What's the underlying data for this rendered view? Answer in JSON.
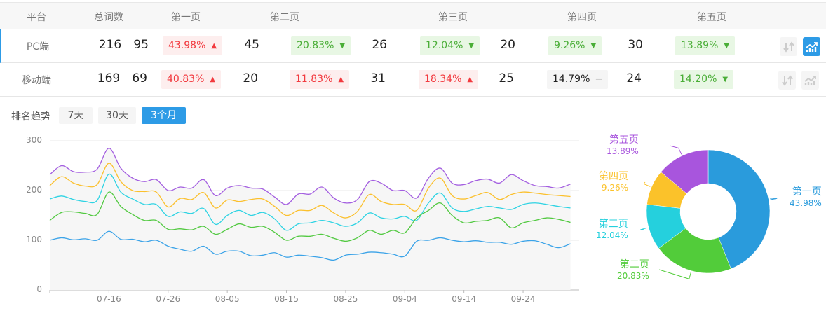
{
  "table": {
    "headers": [
      "平台",
      "总词数",
      "第一页",
      "第二页",
      "第三页",
      "第四页",
      "第五页"
    ],
    "rows": [
      {
        "platform": "PC端",
        "total": "216",
        "active": true,
        "chart_on": true,
        "pages": [
          {
            "count": "95",
            "pct": "43.98%",
            "trend": "up"
          },
          {
            "count": "45",
            "pct": "20.83%",
            "trend": "down"
          },
          {
            "count": "26",
            "pct": "12.04%",
            "trend": "down"
          },
          {
            "count": "20",
            "pct": "9.26%",
            "trend": "down"
          },
          {
            "count": "30",
            "pct": "13.89%",
            "trend": "down"
          }
        ]
      },
      {
        "platform": "移动端",
        "total": "169",
        "active": false,
        "chart_on": false,
        "pages": [
          {
            "count": "69",
            "pct": "40.83%",
            "trend": "up"
          },
          {
            "count": "20",
            "pct": "11.83%",
            "trend": "up"
          },
          {
            "count": "31",
            "pct": "18.34%",
            "trend": "up"
          },
          {
            "count": "25",
            "pct": "14.79%",
            "trend": "flat"
          },
          {
            "count": "24",
            "pct": "14.20%",
            "trend": "down"
          }
        ]
      }
    ],
    "icons": {
      "sort": "sort-arrows-icon",
      "chart": "trend-chart-icon"
    },
    "colors": {
      "up_text": "#f23a3f",
      "up_bg": "#fdeeee",
      "down_text": "#4aae37",
      "down_bg": "#e8f7e4",
      "accent": "#2d9be6"
    }
  },
  "trend": {
    "label": "排名趋势",
    "ranges": [
      {
        "label": "7天",
        "active": false
      },
      {
        "label": "30天",
        "active": false
      },
      {
        "label": "3个月",
        "active": true
      }
    ]
  },
  "chart_data": [
    {
      "type": "line",
      "ylim": [
        0,
        300
      ],
      "yticks": [
        "0",
        "100",
        "200",
        "300"
      ],
      "xticks": [
        "07-16",
        "07-26",
        "08-05",
        "08-15",
        "08-25",
        "09-04",
        "09-14",
        "09-24"
      ],
      "grid": true,
      "x": [
        "07-06",
        "07-08",
        "07-10",
        "07-12",
        "07-14",
        "07-16",
        "07-18",
        "07-20",
        "07-22",
        "07-24",
        "07-26",
        "07-28",
        "07-30",
        "08-01",
        "08-03",
        "08-05",
        "08-07",
        "08-09",
        "08-11",
        "08-13",
        "08-15",
        "08-17",
        "08-19",
        "08-21",
        "08-23",
        "08-25",
        "08-27",
        "08-29",
        "08-31",
        "09-02",
        "09-04",
        "09-06",
        "09-08",
        "09-10",
        "09-12",
        "09-14",
        "09-16",
        "09-18",
        "09-20",
        "09-22",
        "09-24",
        "09-26",
        "09-28",
        "09-30",
        "10-02"
      ],
      "series": [
        {
          "color": "#a35ee0",
          "values": [
            232,
            250,
            238,
            237,
            243,
            285,
            245,
            225,
            218,
            222,
            200,
            207,
            205,
            222,
            190,
            205,
            210,
            205,
            203,
            187,
            172,
            193,
            193,
            207,
            185,
            175,
            182,
            218,
            215,
            200,
            200,
            185,
            225,
            245,
            215,
            212,
            220,
            223,
            215,
            232,
            220,
            210,
            208,
            205,
            213
          ]
        },
        {
          "color": "#fbc02d",
          "values": [
            210,
            228,
            215,
            209,
            212,
            255,
            218,
            200,
            198,
            197,
            167,
            184,
            182,
            196,
            165,
            181,
            178,
            182,
            183,
            168,
            150,
            160,
            160,
            170,
            155,
            145,
            158,
            192,
            178,
            172,
            172,
            160,
            205,
            225,
            190,
            183,
            190,
            196,
            182,
            192,
            197,
            195,
            192,
            190,
            188
          ]
        },
        {
          "color": "#2ed3e3",
          "values": [
            183,
            189,
            182,
            178,
            180,
            233,
            197,
            183,
            172,
            172,
            148,
            157,
            154,
            164,
            132,
            150,
            160,
            150,
            156,
            143,
            120,
            133,
            135,
            140,
            135,
            128,
            135,
            155,
            145,
            143,
            148,
            140,
            175,
            195,
            165,
            158,
            163,
            168,
            165,
            162,
            172,
            175,
            172,
            168,
            165
          ]
        },
        {
          "color": "#52c941",
          "values": [
            140,
            156,
            157,
            154,
            152,
            197,
            168,
            152,
            140,
            140,
            122,
            123,
            121,
            128,
            112,
            122,
            133,
            126,
            128,
            116,
            100,
            108,
            108,
            112,
            104,
            98,
            105,
            120,
            112,
            120,
            115,
            145,
            160,
            175,
            150,
            135,
            138,
            140,
            145,
            125,
            135,
            140,
            145,
            142,
            136
          ]
        },
        {
          "color": "#3ba3e8",
          "values": [
            100,
            105,
            101,
            103,
            100,
            118,
            102,
            102,
            97,
            100,
            88,
            82,
            78,
            88,
            72,
            78,
            78,
            69,
            70,
            75,
            66,
            70,
            68,
            65,
            60,
            70,
            72,
            76,
            75,
            72,
            68,
            98,
            100,
            105,
            100,
            97,
            99,
            96,
            96,
            92,
            98,
            99,
            92,
            85,
            93
          ]
        }
      ]
    },
    {
      "type": "pie",
      "donut": true,
      "slices": [
        {
          "label": "第一页",
          "pct": "43.98%",
          "value": 43.98,
          "color": "#2a9bdc"
        },
        {
          "label": "第二页",
          "pct": "20.83%",
          "value": 20.83,
          "color": "#52cc3a"
        },
        {
          "label": "第三页",
          "pct": "12.04%",
          "value": 12.04,
          "color": "#25d0dd"
        },
        {
          "label": "第四页",
          "pct": "9.26%",
          "value": 9.26,
          "color": "#fbc22a"
        },
        {
          "label": "第五页",
          "pct": "13.89%",
          "value": 13.89,
          "color": "#a855dd"
        }
      ]
    }
  ]
}
